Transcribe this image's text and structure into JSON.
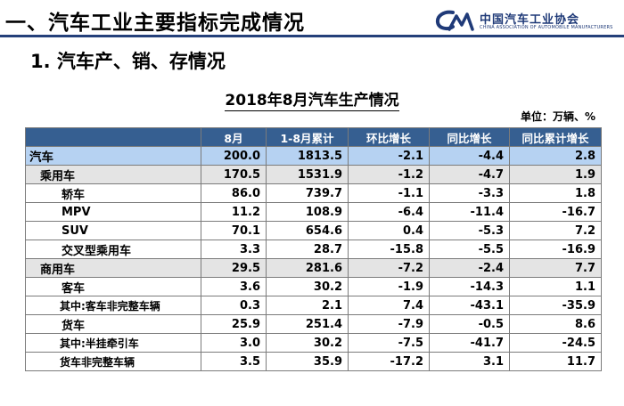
{
  "header": {
    "title": "一、汽车工业主要指标完成情况"
  },
  "logo": {
    "cn": "中国汽车工业协会",
    "en": "CHINA ASSOCIATION OF AUTOMOBILE MANUFACTURERS"
  },
  "subtitle": "1. 汽车产、销、存情况",
  "table": {
    "title": "2018年8月汽车生产情况",
    "unit": "单位：万辆、%",
    "columns": [
      "",
      "8月",
      "1-8月累计",
      "环比增长",
      "同比增长",
      "同比累计增长"
    ],
    "rows": [
      {
        "label": "汽车",
        "values": [
          "200.0",
          "1813.5",
          "-2.1",
          "-4.4",
          "2.8"
        ]
      },
      {
        "label": "乘用车",
        "values": [
          "170.5",
          "1531.9",
          "-1.2",
          "-4.7",
          "1.9"
        ]
      },
      {
        "label": "轿车",
        "values": [
          "86.0",
          "739.7",
          "-1.1",
          "-3.3",
          "1.8"
        ]
      },
      {
        "label": "MPV",
        "values": [
          "11.2",
          "108.9",
          "-6.4",
          "-11.4",
          "-16.7"
        ]
      },
      {
        "label": "SUV",
        "values": [
          "70.1",
          "654.6",
          "0.4",
          "-5.3",
          "7.2"
        ]
      },
      {
        "label": "交叉型乘用车",
        "values": [
          "3.3",
          "28.7",
          "-15.8",
          "-5.5",
          "-16.9"
        ]
      },
      {
        "label": "商用车",
        "values": [
          "29.5",
          "281.6",
          "-7.2",
          "-2.4",
          "7.7"
        ]
      },
      {
        "label": "客车",
        "values": [
          "3.6",
          "30.2",
          "-1.9",
          "-14.3",
          "1.1"
        ]
      },
      {
        "label": "其中:客车非完整车辆",
        "values": [
          "0.3",
          "2.1",
          "7.4",
          "-43.1",
          "-35.9"
        ]
      },
      {
        "label": "货车",
        "values": [
          "25.9",
          "251.4",
          "-7.9",
          "-0.5",
          "8.6"
        ]
      },
      {
        "label": "其中:半挂牵引车",
        "values": [
          "3.0",
          "30.2",
          "-7.5",
          "-41.7",
          "-24.5"
        ]
      },
      {
        "label": "货车非完整车辆",
        "values": [
          "3.5",
          "35.9",
          "-17.2",
          "3.1",
          "11.7"
        ]
      }
    ]
  },
  "colors": {
    "header_rule": "#24407a",
    "table_header": "#365f91",
    "highlight_row": "#b6d2f2",
    "group_row": "#e4e4e4",
    "logo": "#1f3a78"
  }
}
